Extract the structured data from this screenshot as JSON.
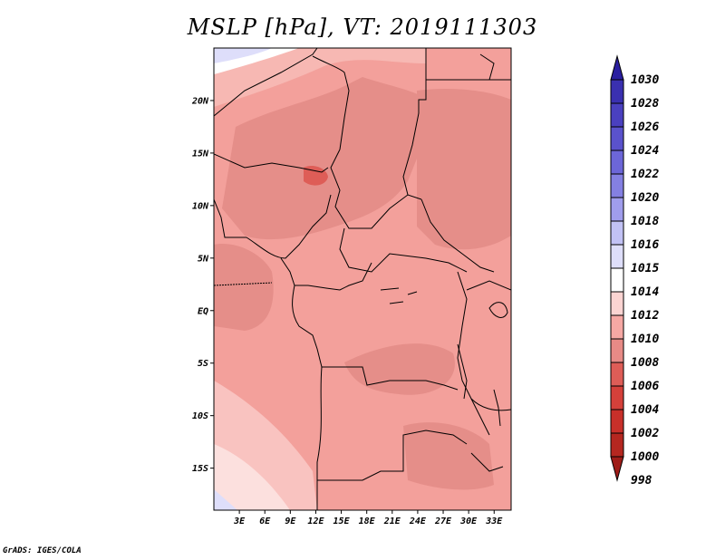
{
  "title": "MSLP [hPa], VT: 2019111303",
  "footer": "GrADS: IGES/COLA",
  "map": {
    "variable": "MSLP",
    "units": "hPa",
    "valid_time": "2019111303",
    "lon_range": [
      0,
      35
    ],
    "lat_range": [
      -19,
      25
    ],
    "lat_ticks": [
      "20N",
      "15N",
      "10N",
      "5N",
      "EQ",
      "5S",
      "10S",
      "15S"
    ],
    "lat_values": [
      20,
      15,
      10,
      5,
      0,
      -5,
      -10,
      -15
    ],
    "lon_ticks": [
      "3E",
      "6E",
      "9E",
      "12E",
      "15E",
      "18E",
      "21E",
      "24E",
      "27E",
      "30E",
      "33E"
    ],
    "lon_values": [
      3,
      6,
      9,
      12,
      15,
      18,
      21,
      24,
      27,
      30,
      33
    ]
  },
  "colorbar": {
    "levels": [
      "1030",
      "1028",
      "1026",
      "1024",
      "1022",
      "1020",
      "1018",
      "1016",
      "1015",
      "1014",
      "1012",
      "1010",
      "1008",
      "1006",
      "1004",
      "1002",
      "1000",
      "998"
    ],
    "colors": [
      "#2a1fa0",
      "#3a30b0",
      "#4a40bf",
      "#5a52cc",
      "#6c66d8",
      "#8480e2",
      "#a09dec",
      "#c2c2f5",
      "#dedefa",
      "#ffffff",
      "#fbd4d2",
      "#f6a8a4",
      "#e78a86",
      "#de5d57",
      "#d5403a",
      "#c8302a",
      "#b52720",
      "#9f1c18"
    ]
  }
}
